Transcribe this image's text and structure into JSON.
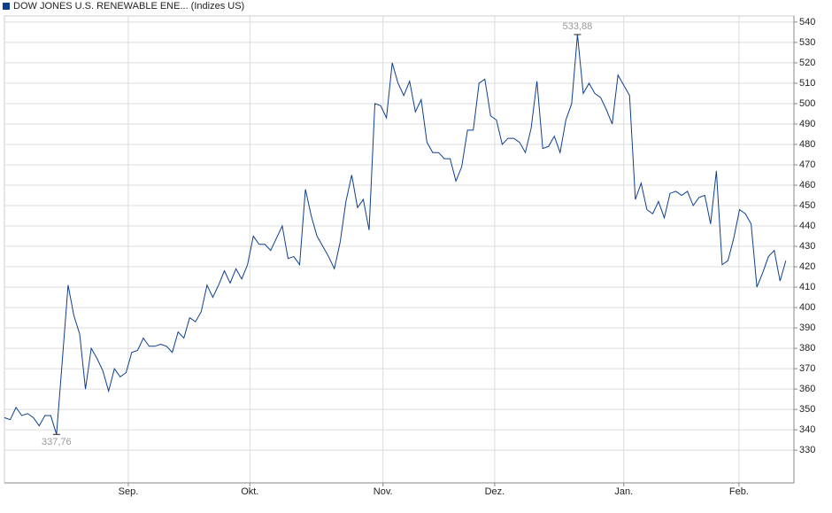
{
  "chart_data": {
    "type": "line",
    "title": "DOW JONES U.S. RENEWABLE ENE... (Indizes US)",
    "series": [
      {
        "name": "DOW JONES U.S. RENEWABLE ENE... (Indizes US)",
        "color": "#0e3f8f",
        "values": [
          346,
          345,
          351,
          347,
          348,
          346,
          342,
          347,
          347,
          337.76,
          374,
          411,
          396,
          387,
          360,
          380,
          375,
          369,
          359,
          370,
          366,
          368,
          378,
          379,
          385,
          381,
          381,
          382,
          381,
          378,
          388,
          385,
          395,
          393,
          398,
          411,
          405,
          411,
          418,
          412,
          419,
          414,
          421,
          435,
          431,
          431,
          428,
          434,
          440,
          424,
          425,
          421,
          458,
          445,
          435,
          430,
          425,
          419,
          432,
          452,
          465,
          449,
          453,
          438,
          500,
          499,
          493,
          520,
          510,
          504,
          511,
          496,
          502,
          481,
          476,
          476,
          473,
          473,
          462,
          469,
          487,
          487,
          510,
          512,
          494,
          492,
          480,
          483,
          483,
          481,
          476,
          488,
          511,
          478,
          479,
          484,
          476,
          492,
          500,
          533.88,
          505,
          510,
          505,
          503,
          497,
          490,
          514,
          509,
          504,
          453,
          461,
          448,
          446,
          452,
          444,
          456,
          457,
          455,
          457,
          450,
          454,
          455,
          441,
          467,
          421,
          423,
          434,
          448,
          446,
          441,
          410,
          417,
          425,
          428,
          413,
          423
        ]
      }
    ],
    "max_label": {
      "value": 533.88,
      "label": "533,88"
    },
    "min_label": {
      "value": 337.76,
      "label": "337,76"
    },
    "xlim": [
      0,
      136.4
    ],
    "xticks": [
      {
        "value": 21.4,
        "label": "Sep."
      },
      {
        "value": 42.4,
        "label": "Okt."
      },
      {
        "value": 65.4,
        "label": "Nov."
      },
      {
        "value": 84.7,
        "label": "Dez."
      },
      {
        "value": 107.0,
        "label": "Jan."
      },
      {
        "value": 126.9,
        "label": "Feb."
      }
    ],
    "ylim": [
      314,
      543
    ],
    "yticks": [
      330,
      340,
      350,
      360,
      370,
      380,
      390,
      400,
      410,
      420,
      430,
      440,
      450,
      460,
      470,
      480,
      490,
      500,
      510,
      520,
      530,
      540
    ],
    "grid": true
  }
}
